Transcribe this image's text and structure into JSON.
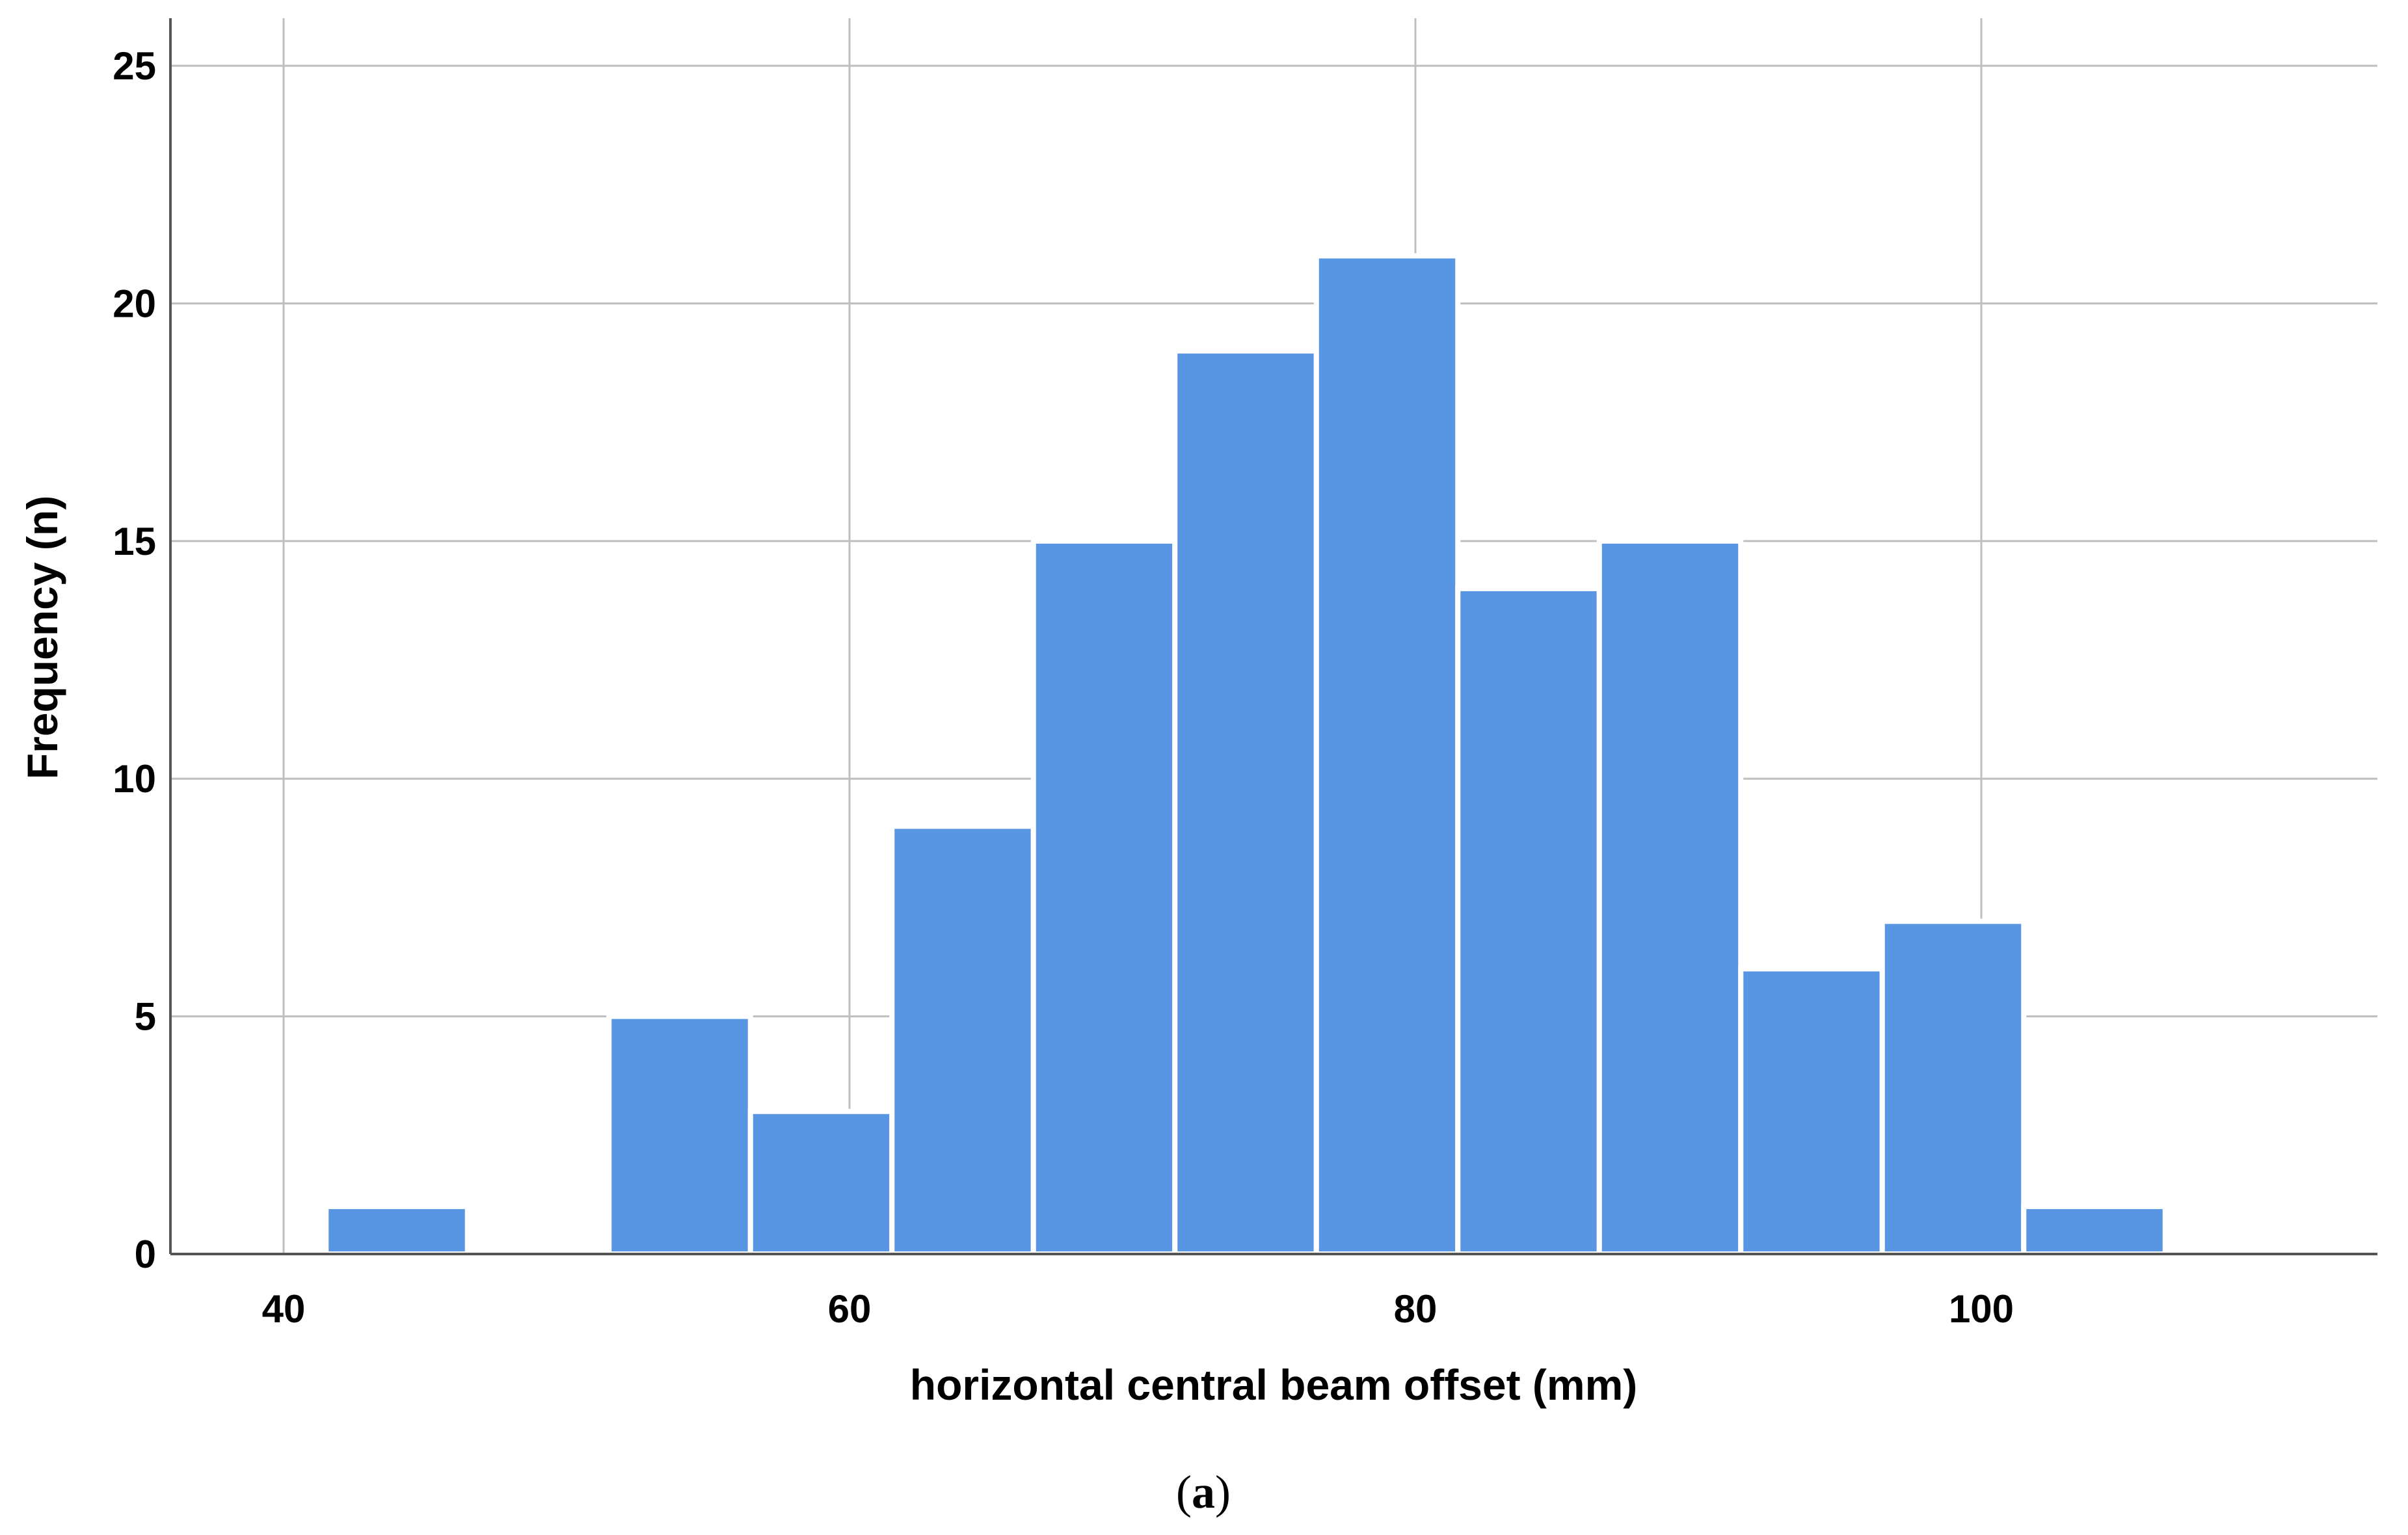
{
  "colors": {
    "bar_fill": "#5896e3",
    "bar_edge": "#ffffff",
    "grid": "#bfbfbf",
    "axis": "#555555"
  },
  "caption": {
    "open": "(",
    "letter": "a",
    "close": ")"
  },
  "chart_data": {
    "type": "bar",
    "xlabel": "horizontal central beam offset (mm)",
    "ylabel": "Frequency (n)",
    "xlim": [
      36,
      114
    ],
    "ylim": [
      0,
      26
    ],
    "grid": true,
    "x_ticks": [
      40,
      60,
      80,
      100
    ],
    "y_ticks": [
      0,
      5,
      10,
      15,
      20,
      25
    ],
    "bin_width": 5,
    "bins": [
      {
        "start": 41.5,
        "end": 46.5,
        "value": 1
      },
      {
        "start": 51.5,
        "end": 56.5,
        "value": 5
      },
      {
        "start": 56.5,
        "end": 61.5,
        "value": 3
      },
      {
        "start": 61.5,
        "end": 66.5,
        "value": 9
      },
      {
        "start": 66.5,
        "end": 71.5,
        "value": 15
      },
      {
        "start": 71.5,
        "end": 76.5,
        "value": 19
      },
      {
        "start": 76.5,
        "end": 81.5,
        "value": 21
      },
      {
        "start": 81.5,
        "end": 86.5,
        "value": 14
      },
      {
        "start": 86.5,
        "end": 91.5,
        "value": 15
      },
      {
        "start": 91.5,
        "end": 96.5,
        "value": 6
      },
      {
        "start": 96.5,
        "end": 101.5,
        "value": 7
      },
      {
        "start": 101.5,
        "end": 106.5,
        "value": 1
      }
    ]
  }
}
